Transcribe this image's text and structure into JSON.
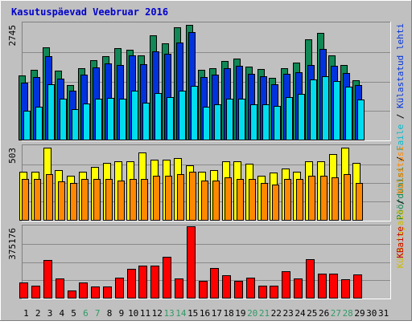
{
  "colors": {
    "background": "#c0c0c0",
    "plot_bg": "#c0c0c0",
    "grid": "#8a8a8a",
    "title": "#0000cc",
    "axis_label": "#000000",
    "weekend_label": "#339966",
    "visits": "#118855",
    "pages": "#0033dd",
    "files": "#00ddee",
    "hits": "#ffff00",
    "unique": "#ff8800",
    "kbytes": "#ff0000",
    "bar_outline": "#000000"
  },
  "chart_data": {
    "type": "bar",
    "title": "Kasutuspäevad Veebruar 2016",
    "categories": [
      "1",
      "2",
      "3",
      "4",
      "5",
      "6",
      "7",
      "8",
      "9",
      "10",
      "11",
      "12",
      "13",
      "14",
      "15",
      "16",
      "17",
      "18",
      "19",
      "20",
      "21",
      "22",
      "23",
      "24",
      "25",
      "26",
      "27",
      "28",
      "29",
      "30",
      "31"
    ],
    "weekend_days": [
      "6",
      "7",
      "13",
      "14",
      "20",
      "21",
      "27",
      "28"
    ],
    "panels": [
      {
        "id": "top",
        "ymax_label": "2745",
        "ymax": 2745,
        "right_label_parts": [
          {
            "text": "Pöördumisi",
            "color": "#118855"
          },
          {
            "text": " / ",
            "color": "#000000"
          },
          {
            "text": "Faile",
            "color": "#00bbcc"
          },
          {
            "text": " / ",
            "color": "#000000"
          },
          {
            "text": "Külastatud lehti",
            "color": "#0033dd"
          }
        ],
        "series": [
          {
            "name": "Pöördumisi",
            "color": "#118855",
            "values": [
              1520,
              1640,
              2180,
              1620,
              1290,
              1690,
              1880,
              1970,
              2160,
              2120,
              1990,
              2460,
              2280,
              2650,
              2700,
              1640,
              1690,
              1850,
              1910,
              1720,
              1660,
              1450,
              1680,
              1810,
              2370,
              2520,
              1980,
              1770,
              1410,
              null,
              null
            ]
          },
          {
            "name": "Külastatud lehti",
            "color": "#0033dd",
            "values": [
              1350,
              1480,
              1970,
              1440,
              1150,
              1530,
              1710,
              1790,
              1760,
              1990,
              1780,
              2080,
              2020,
              2290,
              2530,
              1480,
              1530,
              1690,
              1740,
              1560,
              1500,
              1300,
              1550,
              1590,
              1760,
              2140,
              1750,
              1570,
              1290,
              null,
              null
            ]
          },
          {
            "name": "Faile",
            "color": "#00ddee",
            "values": [
              680,
              780,
              1300,
              960,
              720,
              850,
              970,
              990,
              960,
              1150,
              870,
              1100,
              1010,
              1160,
              1270,
              770,
              830,
              970,
              960,
              840,
              840,
              800,
              1000,
              1080,
              1420,
              1500,
              1380,
              1240,
              950,
              null,
              null
            ]
          }
        ]
      },
      {
        "id": "middle",
        "ymax_label": "503",
        "ymax": 503,
        "right_label_parts": [
          {
            "text": "Külastajaid",
            "color": "#ccbb00"
          },
          {
            "text": " / ",
            "color": "#000000"
          },
          {
            "text": "Külastusi",
            "color": "#ff8800"
          }
        ],
        "series": [
          {
            "name": "Külastajaid",
            "color": "#ffff00",
            "values": [
              330,
              330,
              490,
              340,
              300,
              330,
              360,
              390,
              400,
              400,
              460,
              410,
              410,
              420,
              370,
              330,
              340,
              400,
              400,
              380,
              300,
              320,
              350,
              330,
              400,
              400,
              450,
              490,
              390,
              null,
              null
            ]
          },
          {
            "name": "Külastusi",
            "color": "#ff8800",
            "values": [
              280,
              280,
              310,
              260,
              250,
              280,
              280,
              280,
              270,
              280,
              280,
              300,
              300,
              310,
              330,
              270,
              270,
              290,
              280,
              280,
              250,
              240,
              280,
              280,
              300,
              300,
              290,
              310,
              250,
              null,
              null
            ]
          }
        ]
      },
      {
        "id": "bottom",
        "ymax_label": "375176",
        "ymax": 375176,
        "right_label_parts": [
          {
            "text": "KBaite",
            "color": "#cc0000"
          }
        ],
        "series": [
          {
            "name": "KBaite",
            "color": "#ff0000",
            "values": [
              82000,
              62000,
              198000,
              100000,
              40000,
              82000,
              59000,
              59000,
              107000,
              150000,
              170000,
              168000,
              214000,
              100000,
              375176,
              88000,
              154000,
              119000,
              88000,
              107000,
              65000,
              65000,
              140000,
              100000,
              203000,
              127000,
              127000,
              96000,
              124000,
              null,
              null
            ]
          }
        ]
      }
    ]
  }
}
